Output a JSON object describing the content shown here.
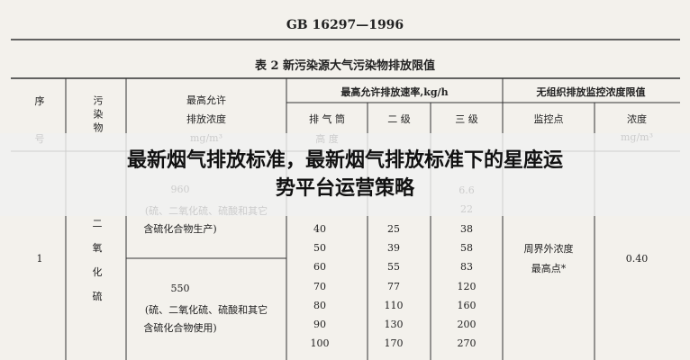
{
  "header": {
    "standard": "GB 16297—1996",
    "table_title": "表 2  新污染源大气污染物排放限值"
  },
  "table": {
    "headers": {
      "no": [
        "序",
        "号"
      ],
      "pollutant": "污染物",
      "concentration": [
        "最高允许",
        "排放浓度",
        "mg/m³"
      ],
      "rate": "最高允许排放速率,kg/h",
      "height": [
        "排 气 筒",
        "高 度"
      ],
      "level2": "二  级",
      "level3": "三  级",
      "fugitive": "无组织排放监控浓度限值",
      "monitor_point": "监控点",
      "fugitive_conc": [
        "浓度",
        "mg/m³"
      ]
    },
    "row": {
      "no": "1",
      "pollutant": [
        "二",
        "氧",
        "化",
        "硫"
      ],
      "conc_a": "960",
      "conc_a_note": [
        "(硫、二氧化硫、硫酸和其它",
        "含硫化合物生产)"
      ],
      "conc_b": "550",
      "conc_b_note": [
        "(硫、二氧化硫、硫酸和其它",
        "含硫化合物使用)"
      ],
      "rate_rows": [
        {
          "level3": "6.6"
        },
        {
          "level3": "22"
        },
        {
          "height": "40",
          "level2": "25",
          "level3": "38"
        },
        {
          "height": "50",
          "level2": "39",
          "level3": "58"
        },
        {
          "height": "60",
          "level2": "55",
          "level3": "83"
        },
        {
          "height": "70",
          "level2": "77",
          "level3": "120"
        },
        {
          "height": "80",
          "level2": "110",
          "level3": "160"
        },
        {
          "height": "90",
          "level2": "130",
          "level3": "200"
        },
        {
          "height": "100",
          "level2": "170",
          "level3": "270"
        }
      ],
      "monitor_point": [
        "周界外浓度",
        "最高点*"
      ],
      "fugitive_conc": "0.40"
    }
  },
  "banner": {
    "title_lines": [
      "最新烟气排放标准，最新烟气排放标准下的星座运",
      "势平台运营策略"
    ]
  }
}
